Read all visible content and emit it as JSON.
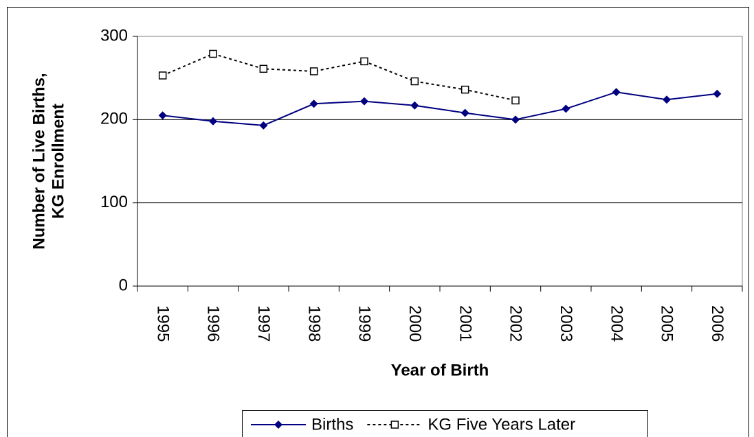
{
  "chart_data": {
    "type": "line",
    "x_label": "Year of Birth",
    "y_label": [
      "Number of Live Births,",
      "KG Enrollment"
    ],
    "categories": [
      "1995",
      "1996",
      "1997",
      "1998",
      "1999",
      "2000",
      "2001",
      "2002",
      "2003",
      "2004",
      "2005",
      "2006"
    ],
    "series": [
      {
        "name": "Births",
        "color": "#000080",
        "marker": "diamond",
        "dash": "solid",
        "values": [
          205,
          198,
          193,
          219,
          222,
          217,
          208,
          200,
          213,
          233,
          224,
          231
        ]
      },
      {
        "name": "KG Five Years Later",
        "color": "#000000",
        "marker": "square",
        "dash": "dashed",
        "values": [
          253,
          279,
          261,
          258,
          270,
          246,
          236,
          223,
          null,
          null,
          null,
          null
        ]
      }
    ],
    "ylim": [
      0,
      300
    ],
    "yticks": [
      0,
      100,
      200,
      300
    ],
    "grid": true,
    "legend": "bottom"
  }
}
